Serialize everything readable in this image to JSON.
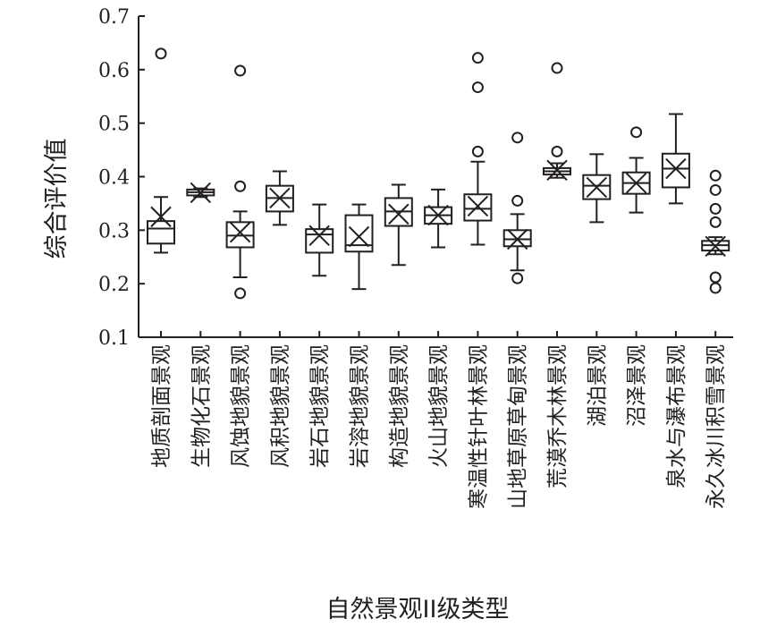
{
  "chart_data": {
    "type": "box",
    "xlabel": "自然景观II级类型",
    "ylabel": "综合评价值",
    "ylim": [
      0.1,
      0.7
    ],
    "yticks": [
      "0.1",
      "0.2",
      "0.3",
      "0.4",
      "0.5",
      "0.6",
      "0.7"
    ],
    "categories": [
      "地质剖面景观",
      "生物化石景观",
      "风蚀地貌景观",
      "风积地貌景观",
      "岩石地貌景观",
      "岩溶地貌景观",
      "构造地貌景观",
      "火山地貌景观",
      "寒温性针叶林景观",
      "山地草原草甸景观",
      "荒漠乔木林景观",
      "湖泊景观",
      "沼泽景观",
      "泉水与瀑布景观",
      "永久冰川积雪景观"
    ],
    "boxes": [
      {
        "whisker_low": 0.258,
        "q1": 0.275,
        "median": 0.303,
        "q3": 0.317,
        "whisker_high": 0.362,
        "mean": 0.325,
        "outliers": [
          0.63
        ]
      },
      {
        "whisker_low": 0.362,
        "q1": 0.365,
        "median": 0.371,
        "q3": 0.376,
        "whisker_high": 0.378,
        "mean": 0.37,
        "outliers": []
      },
      {
        "whisker_low": 0.212,
        "q1": 0.268,
        "median": 0.29,
        "q3": 0.315,
        "whisker_high": 0.335,
        "mean": 0.296,
        "outliers": [
          0.598,
          0.382,
          0.182
        ]
      },
      {
        "whisker_low": 0.31,
        "q1": 0.335,
        "median": 0.36,
        "q3": 0.383,
        "whisker_high": 0.41,
        "mean": 0.36,
        "outliers": []
      },
      {
        "whisker_low": 0.215,
        "q1": 0.258,
        "median": 0.292,
        "q3": 0.302,
        "whisker_high": 0.348,
        "mean": 0.29,
        "outliers": []
      },
      {
        "whisker_low": 0.19,
        "q1": 0.26,
        "median": 0.272,
        "q3": 0.328,
        "whisker_high": 0.348,
        "mean": 0.288,
        "outliers": []
      },
      {
        "whisker_low": 0.235,
        "q1": 0.308,
        "median": 0.335,
        "q3": 0.36,
        "whisker_high": 0.385,
        "mean": 0.33,
        "outliers": []
      },
      {
        "whisker_low": 0.268,
        "q1": 0.312,
        "median": 0.328,
        "q3": 0.343,
        "whisker_high": 0.376,
        "mean": 0.328,
        "outliers": []
      },
      {
        "whisker_low": 0.273,
        "q1": 0.318,
        "median": 0.34,
        "q3": 0.367,
        "whisker_high": 0.428,
        "mean": 0.345,
        "outliers": [
          0.622,
          0.567,
          0.447
        ]
      },
      {
        "whisker_low": 0.225,
        "q1": 0.27,
        "median": 0.283,
        "q3": 0.3,
        "whisker_high": 0.33,
        "mean": 0.283,
        "outliers": [
          0.473,
          0.355,
          0.21
        ]
      },
      {
        "whisker_low": 0.398,
        "q1": 0.404,
        "median": 0.41,
        "q3": 0.416,
        "whisker_high": 0.425,
        "mean": 0.412,
        "outliers": [
          0.603,
          0.447
        ]
      },
      {
        "whisker_low": 0.315,
        "q1": 0.358,
        "median": 0.383,
        "q3": 0.403,
        "whisker_high": 0.442,
        "mean": 0.38,
        "outliers": []
      },
      {
        "whisker_low": 0.333,
        "q1": 0.368,
        "median": 0.388,
        "q3": 0.408,
        "whisker_high": 0.435,
        "mean": 0.388,
        "outliers": [
          0.483
        ]
      },
      {
        "whisker_low": 0.35,
        "q1": 0.38,
        "median": 0.415,
        "q3": 0.443,
        "whisker_high": 0.517,
        "mean": 0.415,
        "outliers": []
      },
      {
        "whisker_low": 0.255,
        "q1": 0.262,
        "median": 0.272,
        "q3": 0.28,
        "whisker_high": 0.287,
        "mean": 0.27,
        "outliers": [
          0.402,
          0.375,
          0.34,
          0.315,
          0.212,
          0.192
        ]
      }
    ],
    "grid": false,
    "legend": "none"
  }
}
